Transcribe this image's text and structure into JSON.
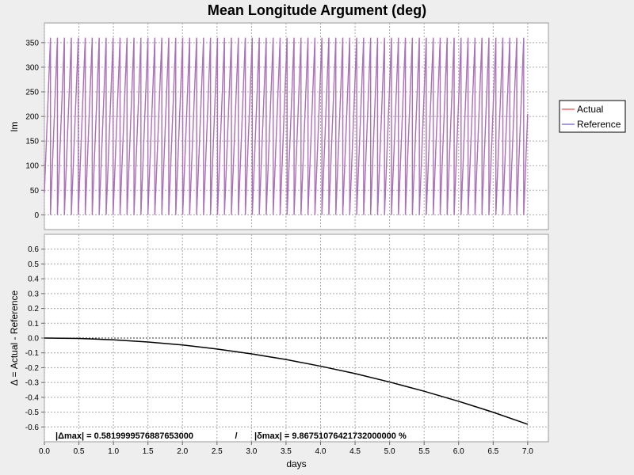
{
  "chart_data": {
    "type": "line",
    "title": "Mean Longitude Argument (deg)",
    "xlabel": "days",
    "x_range": [
      0.0,
      7.3
    ],
    "x_ticks": [
      0.0,
      0.5,
      1.0,
      1.5,
      2.0,
      2.5,
      3.0,
      3.5,
      4.0,
      4.5,
      5.0,
      5.5,
      6.0,
      6.5,
      7.0
    ],
    "x_tick_labels": [
      "0.0",
      "0.5",
      "1.0",
      "1.5",
      "2.0",
      "2.5",
      "3.0",
      "3.5",
      "4.0",
      "4.5",
      "5.0",
      "5.5",
      "6.0",
      "6.5",
      "7.0"
    ],
    "grid": true,
    "top_panel": {
      "ylabel": "lm",
      "ylim": [
        -30,
        390
      ],
      "y_ticks": [
        0,
        50,
        100,
        150,
        200,
        250,
        300,
        350
      ],
      "y_tick_labels": [
        "0",
        "50",
        "100",
        "150",
        "200",
        "250",
        "300",
        "350"
      ],
      "legend_position": "right",
      "series": [
        {
          "name": "Actual",
          "color": "#ff6666",
          "period_days": 0.1008,
          "start_deg": 45,
          "end_x": 7.0
        },
        {
          "name": "Reference",
          "color": "#8877dd",
          "period_days": 0.1008,
          "start_deg": 45,
          "end_x": 7.0
        }
      ]
    },
    "bottom_panel": {
      "ylabel": "Δ = Actual - Reference",
      "ylim": [
        -0.7,
        0.7
      ],
      "y_ticks": [
        -0.6,
        -0.5,
        -0.4,
        -0.3,
        -0.2,
        -0.1,
        0.0,
        0.1,
        0.2,
        0.3,
        0.4,
        0.5,
        0.6
      ],
      "y_tick_labels": [
        "-0.6",
        "-0.5",
        "-0.4",
        "-0.3",
        "-0.2",
        "-0.1",
        "0.0",
        "0.1",
        "0.2",
        "0.3",
        "0.4",
        "0.5",
        "0.6"
      ],
      "series": [
        {
          "name": "Delta",
          "color": "#000000",
          "x": [
            0.0,
            0.5,
            1.0,
            1.5,
            2.0,
            2.5,
            3.0,
            3.5,
            4.0,
            4.5,
            5.0,
            5.5,
            6.0,
            6.5,
            7.0
          ],
          "y": [
            0.0,
            -0.003,
            -0.012,
            -0.027,
            -0.047,
            -0.074,
            -0.107,
            -0.145,
            -0.19,
            -0.24,
            -0.297,
            -0.359,
            -0.427,
            -0.501,
            -0.582
          ]
        }
      ],
      "annotation_delta": "|Δmax| = 0.5819999576887653000",
      "annotation_separator": "/",
      "annotation_rel": "|δmax| = 9.86751076421732000000 %"
    }
  }
}
